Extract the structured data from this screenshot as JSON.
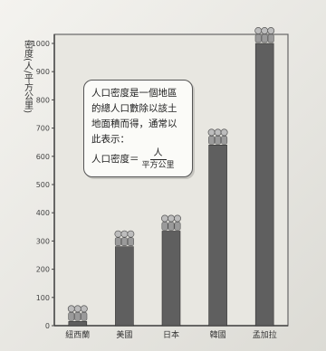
{
  "chart_data": {
    "type": "bar",
    "ylabel": "密度(人/平方公里)",
    "ylim": [
      0,
      1000
    ],
    "yticks": [
      0,
      100,
      200,
      300,
      400,
      500,
      600,
      700,
      800,
      900,
      1000
    ],
    "categories": [
      "紐西蘭",
      "美國",
      "日本",
      "韓國",
      "孟加拉"
    ],
    "values": [
      15,
      280,
      335,
      640,
      1000
    ],
    "bar_color": "#5f5f5f",
    "grid": false
  },
  "note": {
    "line1": "人口密度是一個地區",
    "line2": "的總人口數除以該土",
    "line3": "地面積而得，通常以",
    "line4": "此表示：",
    "formula_label": "人口密度＝",
    "formula_num": "人",
    "formula_den": "平方公里"
  },
  "colors": {
    "frame": "#666666",
    "plot_bg": "#e8e7e1"
  }
}
